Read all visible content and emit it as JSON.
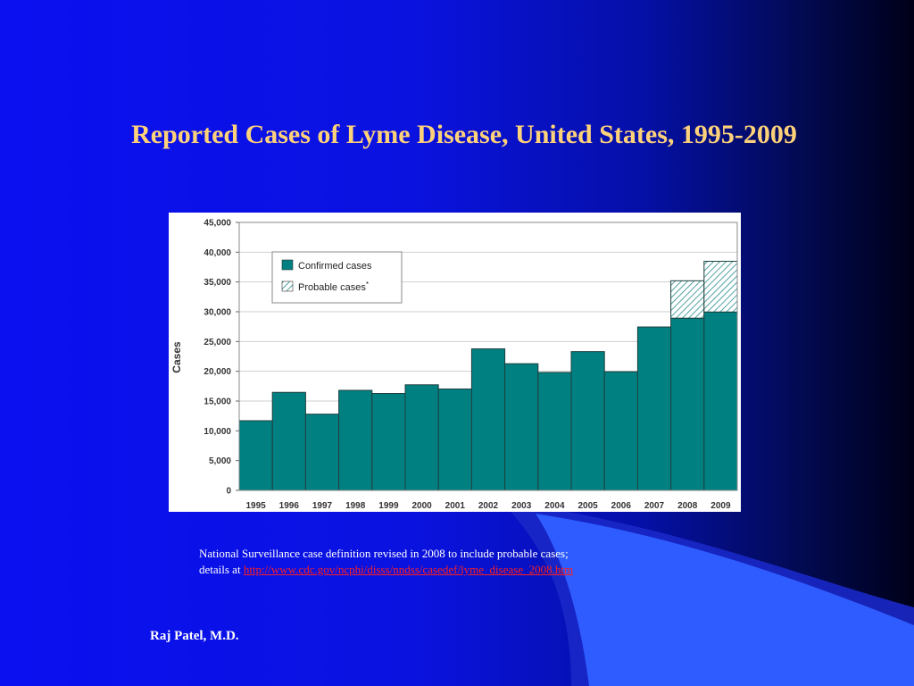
{
  "slide": {
    "title": "Reported Cases of Lyme Disease, United States, 1995-2009",
    "footnote_line1": "National Surveillance case definition revised in 2008 to include probable cases;",
    "footnote_prefix": "details at ",
    "footnote_link": "http://www.cdc.gov/ncphi/disss/nndss/casedef/lyme_disease_2008.htm",
    "author": "Raj Patel, M.D."
  },
  "colors": {
    "title": "#ffd27a",
    "confirmed": "#008080",
    "probable_hatch": "#2a8a8a",
    "link": "#ff2020"
  },
  "chart_data": {
    "type": "bar",
    "stacked": true,
    "title": "",
    "xlabel": "",
    "ylabel": "Cases",
    "ylim": [
      0,
      45000
    ],
    "yticks": [
      0,
      5000,
      10000,
      15000,
      20000,
      25000,
      30000,
      35000,
      40000,
      45000
    ],
    "ytick_labels": [
      "0",
      "5,000",
      "10,000",
      "15,000",
      "20,000",
      "25,000",
      "30,000",
      "35,000",
      "40,000",
      "45,000"
    ],
    "grid": true,
    "legend_position": "top-left",
    "categories": [
      "1995",
      "1996",
      "1997",
      "1998",
      "1999",
      "2000",
      "2001",
      "2002",
      "2003",
      "2004",
      "2005",
      "2006",
      "2007",
      "2008",
      "2009"
    ],
    "series": [
      {
        "name": "Confirmed cases",
        "values": [
          11700,
          16461,
          12801,
          16801,
          16273,
          17730,
          17029,
          23763,
          21273,
          19804,
          23305,
          19931,
          27444,
          28921,
          29959
        ]
      },
      {
        "name": "Probable cases",
        "legend_marker": "*",
        "values": [
          0,
          0,
          0,
          0,
          0,
          0,
          0,
          0,
          0,
          0,
          0,
          0,
          0,
          6277,
          8509
        ]
      }
    ]
  }
}
